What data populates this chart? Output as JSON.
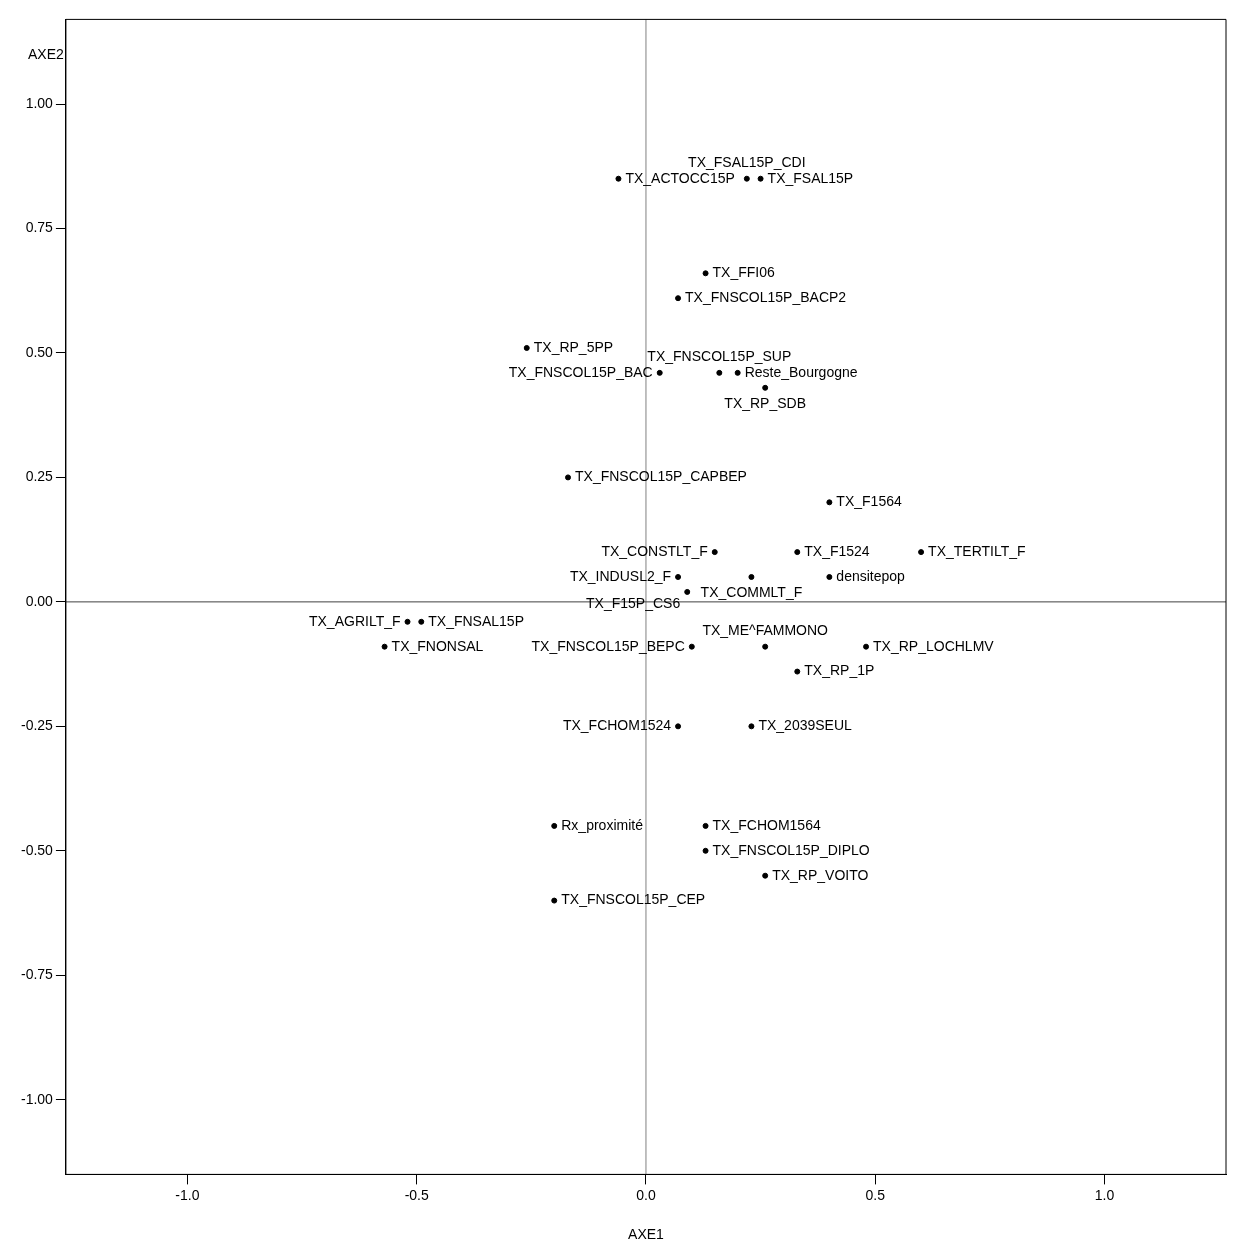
{
  "chart_data": {
    "type": "scatter",
    "xlabel": "AXE1",
    "ylabel": "AXE2",
    "xlim": [
      -1.265,
      1.265
    ],
    "ylim": [
      -1.15,
      1.17
    ],
    "xticks": [
      {
        "value": -1,
        "label": "-1.0"
      },
      {
        "value": -0.5,
        "label": "-0.5"
      },
      {
        "value": 0,
        "label": "0.0"
      },
      {
        "value": 0.5,
        "label": "0.5"
      },
      {
        "value": 1,
        "label": "1.0"
      }
    ],
    "yticks": [
      {
        "value": -1,
        "label": "-1.00"
      },
      {
        "value": -0.75,
        "label": "-0.75"
      },
      {
        "value": -0.5,
        "label": "-0.50"
      },
      {
        "value": -0.25,
        "label": "-0.25"
      },
      {
        "value": 0,
        "label": "0.00"
      },
      {
        "value": 0.25,
        "label": "0.25"
      },
      {
        "value": 0.5,
        "label": "0.50"
      },
      {
        "value": 0.75,
        "label": "0.75"
      },
      {
        "value": 1,
        "label": "1.00"
      }
    ],
    "grid": false,
    "legend": false,
    "marker": "circle",
    "ref_lines": [
      {
        "axis": "x",
        "value": 0,
        "color": "#808080"
      },
      {
        "axis": "y",
        "value": 0,
        "color": "#404040"
      }
    ],
    "series": [
      {
        "color": "#000000",
        "x": [
          0.22,
          0.25,
          -0.06,
          0.13,
          0.07,
          -0.26,
          0.16,
          0.03,
          0.2,
          0.26,
          -0.17,
          0.4,
          0.33,
          0.15,
          0.6,
          0.07,
          0.23,
          0.4,
          0.09,
          -0.52,
          -0.49,
          0.48,
          -0.57,
          0.26,
          0.1,
          0.33,
          0.07,
          0.23,
          -0.2,
          0.13,
          0.13,
          0.26,
          -0.2
        ],
        "values": [
          0.85,
          0.85,
          0.85,
          0.66,
          0.61,
          0.51,
          0.46,
          0.46,
          0.46,
          0.43,
          0.25,
          0.2,
          0.1,
          0.1,
          0.1,
          0.05,
          0.05,
          0.05,
          0.02,
          -0.04,
          -0.04,
          -0.09,
          -0.09,
          -0.09,
          -0.09,
          -0.14,
          -0.25,
          -0.25,
          -0.45,
          -0.45,
          -0.5,
          -0.55,
          -0.6
        ]
      }
    ],
    "annotations": [
      {
        "text": "TX_FSAL15P_CDI",
        "x": 0.22,
        "y": 0.85
      },
      {
        "text": "TX_FSAL15P",
        "x": 0.25,
        "y": 0.85
      },
      {
        "text": "TX_ACTOCC15P",
        "x": -0.06,
        "y": 0.85
      },
      {
        "text": "TX_FFI06",
        "x": 0.13,
        "y": 0.66
      },
      {
        "text": "TX_FNSCOL15P_BACP2",
        "x": 0.07,
        "y": 0.61
      },
      {
        "text": "TX_RP_5PP",
        "x": -0.26,
        "y": 0.51
      },
      {
        "text": "TX_FNSCOL15P_SUP",
        "x": 0.16,
        "y": 0.46
      },
      {
        "text": "TX_FNSCOL15P_BAC",
        "x": 0.03,
        "y": 0.46
      },
      {
        "text": "Reste_Bourgogne",
        "x": 0.2,
        "y": 0.46
      },
      {
        "text": "TX_RP_SDB",
        "x": 0.26,
        "y": 0.43
      },
      {
        "text": "TX_FNSCOL15P_CAPBEP",
        "x": -0.17,
        "y": 0.25
      },
      {
        "text": "TX_F1564",
        "x": 0.4,
        "y": 0.2
      },
      {
        "text": "TX_F1524",
        "x": 0.33,
        "y": 0.1
      },
      {
        "text": "TX_CONSTLT_F",
        "x": 0.15,
        "y": 0.1
      },
      {
        "text": "TX_TERTILT_F",
        "x": 0.6,
        "y": 0.1
      },
      {
        "text": "TX_INDUSL2_F",
        "x": 0.07,
        "y": 0.05
      },
      {
        "text": "TX_COMMLT_F",
        "x": 0.23,
        "y": 0.05
      },
      {
        "text": "densitepop",
        "x": 0.4,
        "y": 0.05
      },
      {
        "text": "TX_F15P_CS6",
        "x": 0.09,
        "y": 0.02
      },
      {
        "text": "TX_AGRILT_F",
        "x": -0.52,
        "y": -0.04
      },
      {
        "text": "TX_FNSAL15P",
        "x": -0.49,
        "y": -0.04
      },
      {
        "text": "TX_RP_LOCHLMV",
        "x": 0.48,
        "y": -0.09
      },
      {
        "text": "TX_FNONSAL",
        "x": -0.57,
        "y": -0.09
      },
      {
        "text": "TX_ME^FAMMONO",
        "x": 0.26,
        "y": -0.09
      },
      {
        "text": "TX_FNSCOL15P_BEPC",
        "x": 0.1,
        "y": -0.09
      },
      {
        "text": "TX_RP_1P",
        "x": 0.33,
        "y": -0.14
      },
      {
        "text": "TX_FCHOM1524",
        "x": 0.07,
        "y": -0.25
      },
      {
        "text": "TX_2039SEUL",
        "x": 0.23,
        "y": -0.25
      },
      {
        "text": "Rx_proximité",
        "x": -0.2,
        "y": -0.45
      },
      {
        "text": "TX_FCHOM1564",
        "x": 0.13,
        "y": -0.45
      },
      {
        "text": "TX_FNSCOL15P_DIPLO",
        "x": 0.13,
        "y": -0.5
      },
      {
        "text": "TX_RP_VOITO",
        "x": 0.26,
        "y": -0.55
      },
      {
        "text": "TX_FNSCOL15P_CEP",
        "x": -0.2,
        "y": -0.6
      }
    ]
  }
}
